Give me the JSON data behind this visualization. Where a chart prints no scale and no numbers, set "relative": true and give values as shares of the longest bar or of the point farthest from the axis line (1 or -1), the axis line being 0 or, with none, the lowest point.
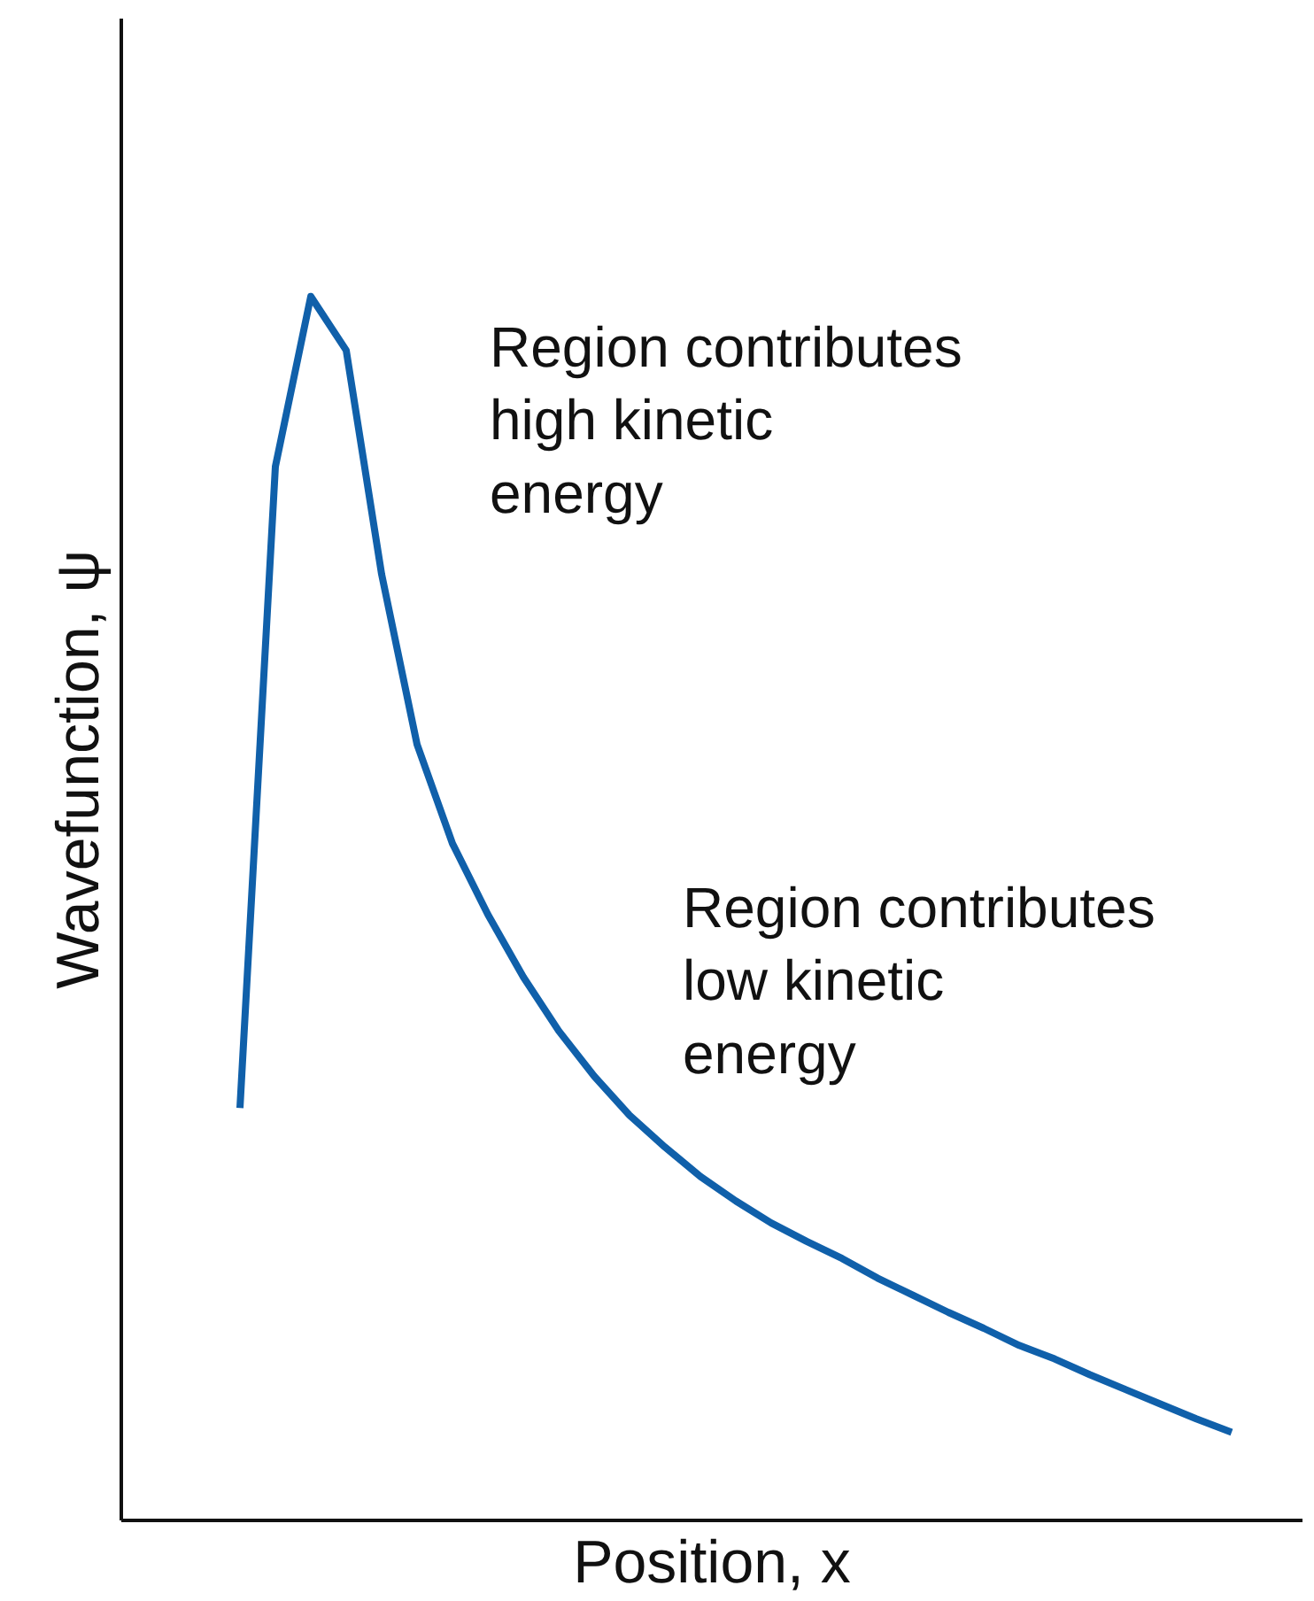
{
  "chart_data": {
    "type": "line",
    "relative": true,
    "xlabel": "Position, x",
    "ylabel": "Wavefunction, ψ",
    "categories": [
      null,
      null,
      null,
      null,
      null,
      null,
      null,
      null,
      null,
      null,
      null,
      null,
      null,
      null,
      null,
      null,
      null,
      null,
      null,
      null,
      null,
      null,
      null,
      null,
      null,
      null,
      null,
      null,
      null
    ],
    "series": [
      {
        "color": "#1060aa",
        "values": [
          0.337,
          0.861,
          1.0,
          0.956,
          0.773,
          0.634,
          0.553,
          0.495,
          0.444,
          0.4,
          0.363,
          0.331,
          0.305,
          0.281,
          0.261,
          0.243,
          0.228,
          0.214,
          0.198,
          0.184,
          0.17,
          0.157,
          0.143,
          0.132,
          0.119,
          0.107,
          0.095,
          0.083,
          0.072
        ]
      }
    ],
    "annotations": [
      "Region contributes high kinetic energy",
      "Region contributes low kinetic energy"
    ]
  }
}
